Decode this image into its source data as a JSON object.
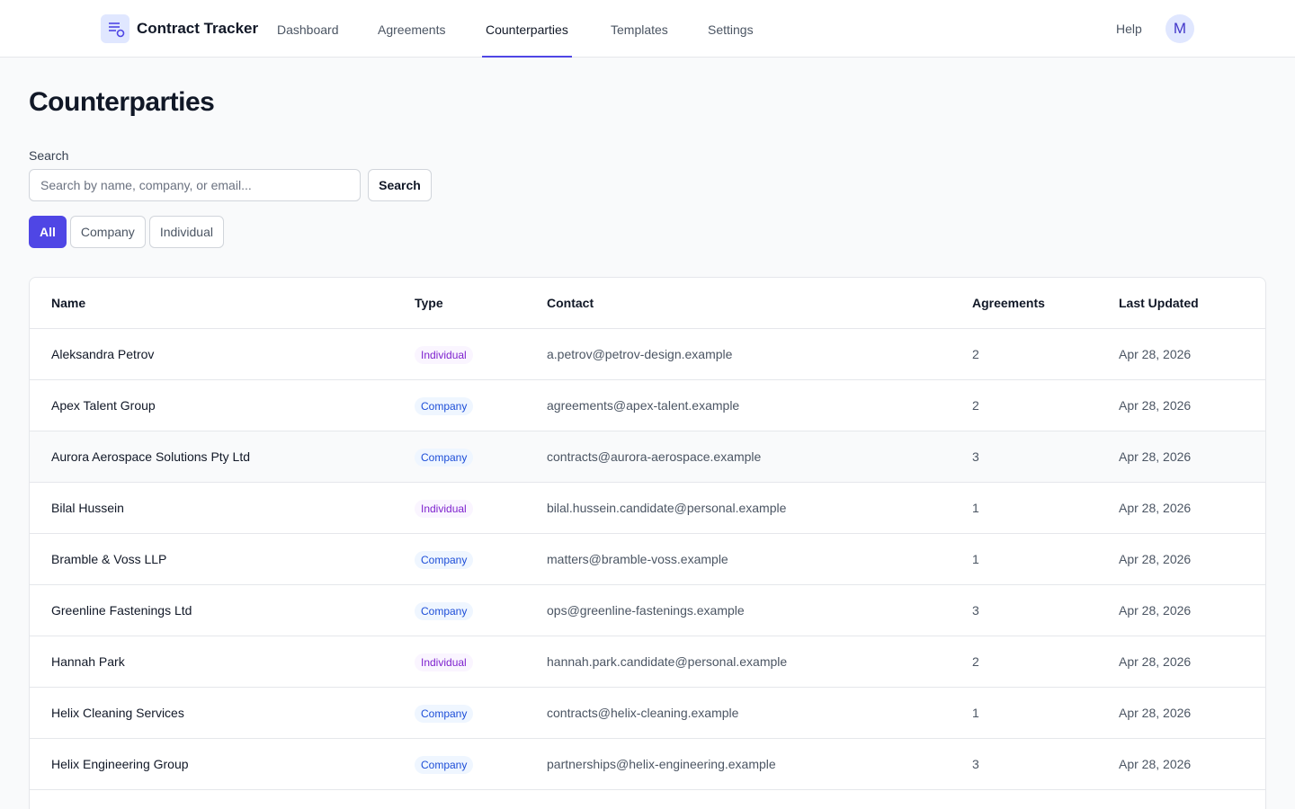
{
  "header": {
    "brand": "Contract Tracker",
    "nav": [
      "Dashboard",
      "Agreements",
      "Counterparties",
      "Templates",
      "Settings"
    ],
    "active_nav": 2,
    "help": "Help",
    "avatar": "M"
  },
  "page": {
    "title": "Counterparties",
    "search_label": "Search",
    "search_placeholder": "Search by name, company, or email...",
    "search_button": "Search",
    "filters": [
      "All",
      "Company",
      "Individual"
    ],
    "active_filter": 0
  },
  "table": {
    "columns": [
      "Name",
      "Type",
      "Contact",
      "Agreements",
      "Last Updated"
    ],
    "highlighted_row": 2,
    "rows": [
      [
        "Aleksandra Petrov",
        "Individual",
        "a.petrov@petrov-design.example",
        2,
        "Apr 28, 2026"
      ],
      [
        "Apex Talent Group",
        "Company",
        "agreements@apex-talent.example",
        2,
        "Apr 28, 2026"
      ],
      [
        "Aurora Aerospace Solutions Pty Ltd",
        "Company",
        "contracts@aurora-aerospace.example",
        3,
        "Apr 28, 2026"
      ],
      [
        "Bilal Hussein",
        "Individual",
        "bilal.hussein.candidate@personal.example",
        1,
        "Apr 28, 2026"
      ],
      [
        "Bramble & Voss LLP",
        "Company",
        "matters@bramble-voss.example",
        1,
        "Apr 28, 2026"
      ],
      [
        "Greenline Fastenings Ltd",
        "Company",
        "ops@greenline-fastenings.example",
        3,
        "Apr 28, 2026"
      ],
      [
        "Hannah Park",
        "Individual",
        "hannah.park.candidate@personal.example",
        2,
        "Apr 28, 2026"
      ],
      [
        "Helix Cleaning Services",
        "Company",
        "contracts@helix-cleaning.example",
        1,
        "Apr 28, 2026"
      ],
      [
        "Helix Engineering Group",
        "Company",
        "partnerships@helix-engineering.example",
        3,
        "Apr 28, 2026"
      ]
    ]
  }
}
